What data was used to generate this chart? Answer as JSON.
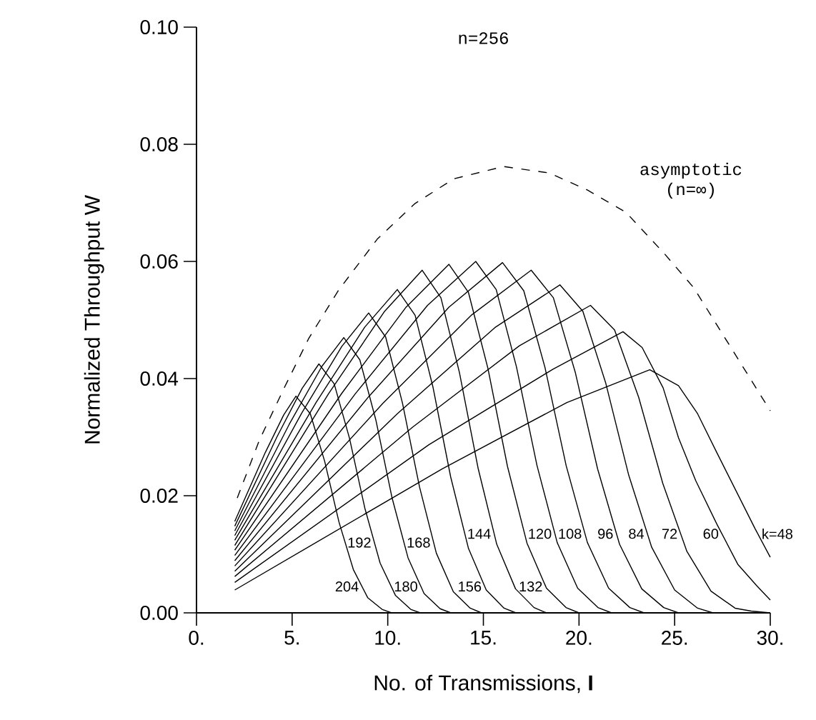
{
  "chart_data": {
    "type": "line",
    "title": "n=256",
    "xlabel": "No. of Transmissions, **I**",
    "ylabel": "Normalized Throughput W",
    "xlim": [
      0,
      30
    ],
    "ylim": [
      0,
      0.1
    ],
    "xticks": [
      {
        "value": 0,
        "label": "0."
      },
      {
        "value": 5,
        "label": "5."
      },
      {
        "value": 10,
        "label": "10."
      },
      {
        "value": 15,
        "label": "15."
      },
      {
        "value": 20,
        "label": "20."
      },
      {
        "value": 25,
        "label": "25."
      },
      {
        "value": 30,
        "label": "30."
      }
    ],
    "yticks": [
      {
        "value": 0,
        "label": "0.00"
      },
      {
        "value": 0.02,
        "label": "0.02"
      },
      {
        "value": 0.04,
        "label": "0.04"
      },
      {
        "value": 0.06,
        "label": "0.06"
      },
      {
        "value": 0.08,
        "label": "0.08"
      },
      {
        "value": 0.1,
        "label": "0.10"
      }
    ],
    "grid": false,
    "marker": "none",
    "line_style": "solid",
    "series": [
      {
        "name": "k=48",
        "color": "#000000",
        "x": [
          2,
          12.85,
          19.36,
          23.7,
          25.2,
          26.2,
          27.2,
          28.2,
          29.2,
          30
        ],
        "values": [
          0.0039,
          0.0246,
          0.0359,
          0.0415,
          0.0388,
          0.034,
          0.0274,
          0.0209,
          0.0144,
          0.0095
        ]
      },
      {
        "name": "60",
        "color": "#000000",
        "x": [
          2,
          12.15,
          18.64,
          22.3,
          23.3,
          24.4,
          25.2,
          26.1,
          27.2,
          28.3,
          29.3,
          30
        ],
        "values": [
          0.0052,
          0.0287,
          0.0416,
          0.048,
          0.0453,
          0.0384,
          0.0299,
          0.0226,
          0.0152,
          0.0083,
          0.0046,
          0.0022
        ]
      },
      {
        "name": "72",
        "color": "#000000",
        "x": [
          2,
          11.3,
          16.88,
          20.6,
          21.86,
          23.12,
          24.38,
          25.64,
          26.9,
          28.16,
          29.0,
          30
        ],
        "values": [
          0.0062,
          0.0317,
          0.0456,
          0.0525,
          0.0483,
          0.0368,
          0.0221,
          0.0105,
          0.0037,
          0.0008,
          0.0003,
          0
        ]
      },
      {
        "name": "84",
        "color": "#000000",
        "x": [
          2,
          10.5,
          15.6,
          19.0,
          20.2,
          21.4,
          22.6,
          23.8,
          25.0,
          26.2,
          27.0,
          30
        ],
        "values": [
          0.0071,
          0.034,
          0.0487,
          0.056,
          0.0515,
          0.0392,
          0.0235,
          0.0112,
          0.0039,
          0.0008,
          0,
          0
        ]
      },
      {
        "name": "96",
        "color": "#000000",
        "x": [
          2,
          9.75,
          14.4,
          17.5,
          18.66,
          19.81,
          20.97,
          22.12,
          23.28,
          24.43,
          25.2,
          30
        ],
        "values": [
          0.008,
          0.0358,
          0.0509,
          0.0585,
          0.0538,
          0.041,
          0.0246,
          0.0117,
          0.0041,
          0.0009,
          0,
          0
        ]
      },
      {
        "name": "108",
        "color": "#000000",
        "x": [
          2,
          9.0,
          13.2,
          16.0,
          17.11,
          18.22,
          19.33,
          20.44,
          21.55,
          22.66,
          23.4,
          30
        ],
        "values": [
          0.0089,
          0.0369,
          0.0522,
          0.0598,
          0.055,
          0.0419,
          0.0251,
          0.012,
          0.0042,
          0.0009,
          0,
          0
        ]
      },
      {
        "name": "120",
        "color": "#000000",
        "x": [
          2,
          8.3,
          12.08,
          14.6,
          15.67,
          16.73,
          17.8,
          18.86,
          19.93,
          20.99,
          21.7,
          30
        ],
        "values": [
          0.0098,
          0.0374,
          0.0525,
          0.06,
          0.0552,
          0.042,
          0.0252,
          0.012,
          0.0042,
          0.0009,
          0,
          0
        ]
      },
      {
        "name": "132",
        "color": "#000000",
        "x": [
          2,
          7.6,
          10.96,
          13.2,
          14.22,
          15.24,
          16.26,
          17.28,
          18.3,
          19.32,
          20.0,
          30
        ],
        "values": [
          0.0107,
          0.0375,
          0.0522,
          0.0595,
          0.0547,
          0.0417,
          0.025,
          0.0119,
          0.0042,
          0.0009,
          0,
          0
        ]
      },
      {
        "name": "144",
        "color": "#000000",
        "x": [
          2,
          6.9,
          9.84,
          11.8,
          12.78,
          13.75,
          14.73,
          15.7,
          16.68,
          17.65,
          18.3,
          30
        ],
        "values": [
          0.0115,
          0.0374,
          0.0515,
          0.0585,
          0.0538,
          0.041,
          0.0246,
          0.0117,
          0.0041,
          0.0009,
          0,
          0
        ]
      },
      {
        "name": "156",
        "color": "#000000",
        "x": [
          2,
          6.25,
          8.8,
          10.5,
          11.43,
          12.36,
          13.29,
          14.22,
          15.15,
          16.08,
          16.7,
          30
        ],
        "values": [
          0.0124,
          0.0359,
          0.0488,
          0.0552,
          0.0508,
          0.0386,
          0.0232,
          0.011,
          0.0039,
          0.0008,
          0,
          0
        ]
      },
      {
        "name": "168",
        "color": "#000000",
        "x": [
          2,
          5.5,
          7.6,
          9.0,
          9.89,
          10.77,
          11.66,
          12.54,
          13.43,
          14.31,
          14.9,
          30
        ],
        "values": [
          0.0132,
          0.0341,
          0.0455,
          0.0512,
          0.0471,
          0.0358,
          0.0215,
          0.0102,
          0.0036,
          0.0008,
          0,
          0
        ]
      },
      {
        "name": "180",
        "color": "#000000",
        "x": [
          2,
          4.85,
          6.56,
          7.7,
          8.54,
          9.38,
          10.22,
          11.06,
          11.9,
          12.74,
          13.3,
          30
        ],
        "values": [
          0.014,
          0.0322,
          0.0421,
          0.047,
          0.0432,
          0.0329,
          0.0197,
          0.0094,
          0.0033,
          0.0007,
          0,
          0
        ]
      },
      {
        "name": "192",
        "color": "#000000",
        "x": [
          2,
          4.2,
          5.52,
          6.4,
          7.2,
          8.0,
          8.8,
          9.6,
          10.4,
          11.2,
          11.7,
          30
        ],
        "values": [
          0.0148,
          0.03,
          0.0383,
          0.0425,
          0.0391,
          0.0298,
          0.0179,
          0.0085,
          0.003,
          0.0006,
          0,
          0
        ]
      },
      {
        "name": "204",
        "color": "#000000",
        "x": [
          2,
          3.6,
          4.56,
          5.2,
          5.95,
          6.7,
          7.45,
          8.2,
          8.95,
          9.7,
          10.2,
          30
        ],
        "values": [
          0.0156,
          0.0274,
          0.0338,
          0.037,
          0.034,
          0.0259,
          0.0155,
          0.0074,
          0.0026,
          0.0006,
          0,
          0
        ]
      },
      {
        "name": "asymptotic (n=∞)",
        "color": "#000000",
        "line_style": "dashed",
        "x": [
          2.13,
          3.29,
          4.6,
          5.86,
          7.43,
          9.45,
          11.43,
          13.45,
          16.06,
          18.45,
          20.43,
          22.45,
          24.47,
          26.0,
          28.0,
          30.0
        ],
        "values": [
          0.0196,
          0.0295,
          0.0385,
          0.0468,
          0.0551,
          0.0638,
          0.0699,
          0.0741,
          0.0762,
          0.0751,
          0.0722,
          0.0684,
          0.0613,
          0.0555,
          0.045,
          0.0345
        ]
      }
    ]
  }
}
